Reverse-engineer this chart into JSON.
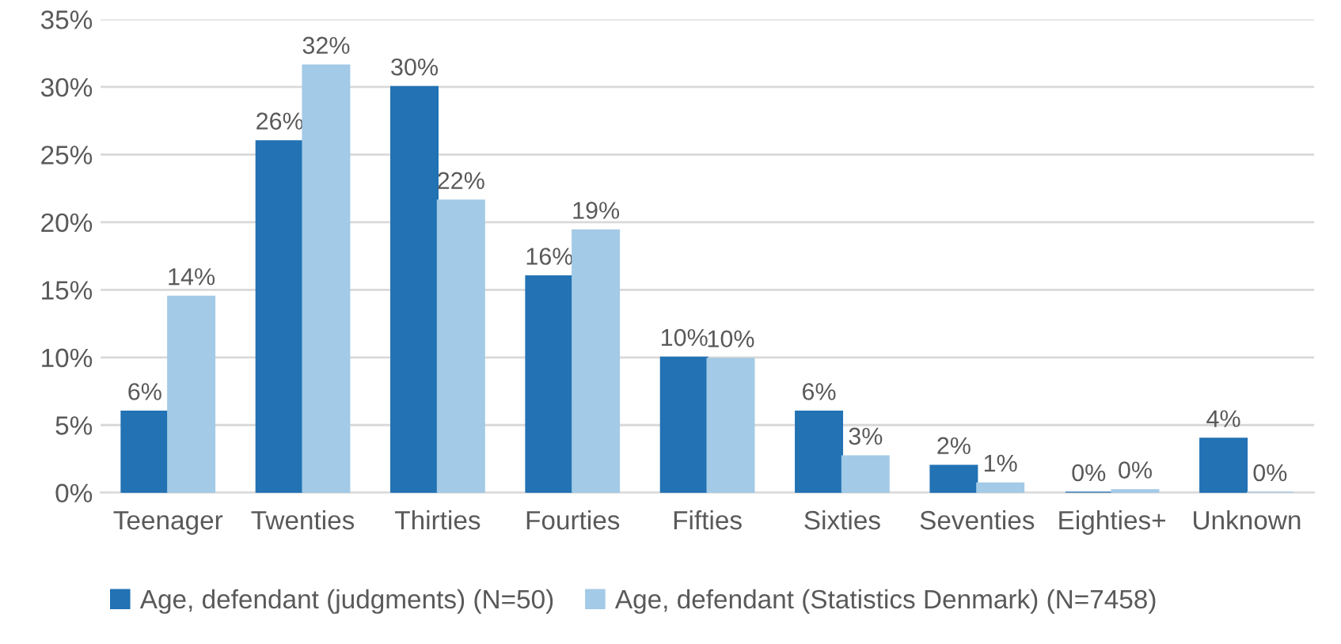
{
  "chart_data": {
    "type": "bar",
    "categories": [
      "Teenager",
      "Twenties",
      "Thirties",
      "Fourties",
      "Fifties",
      "Sixties",
      "Seventies",
      "Eighties+",
      "Unknown"
    ],
    "series": [
      {
        "name": "Age, defendant (judgments) (N=50)",
        "color": "#2272b4",
        "values": [
          6,
          26,
          30,
          16,
          10,
          6,
          2,
          0,
          4
        ],
        "value_labels": [
          "6%",
          "26%",
          "30%",
          "16%",
          "10%",
          "6%",
          "2%",
          "0%",
          "4%"
        ]
      },
      {
        "name": "Age, defendant (Statistics Denmark) (N=7458)",
        "color": "#a3cae6",
        "values": [
          14.5,
          31.6,
          21.6,
          19.4,
          9.9,
          2.7,
          0.7,
          0.2,
          0
        ],
        "value_labels": [
          "14%",
          "32%",
          "22%",
          "19%",
          "10%",
          "3%",
          "1%",
          "0%",
          "0%"
        ]
      }
    ],
    "ylim": [
      0,
      35
    ],
    "yticks": [
      {
        "value": 0,
        "label": "0%"
      },
      {
        "value": 5,
        "label": "5%"
      },
      {
        "value": 10,
        "label": "10%"
      },
      {
        "value": 15,
        "label": "15%"
      },
      {
        "value": 20,
        "label": "20%"
      },
      {
        "value": 25,
        "label": "25%"
      },
      {
        "value": 30,
        "label": "30%"
      },
      {
        "value": 35,
        "label": "35%"
      }
    ],
    "grid": "y",
    "legend": "bottom"
  }
}
